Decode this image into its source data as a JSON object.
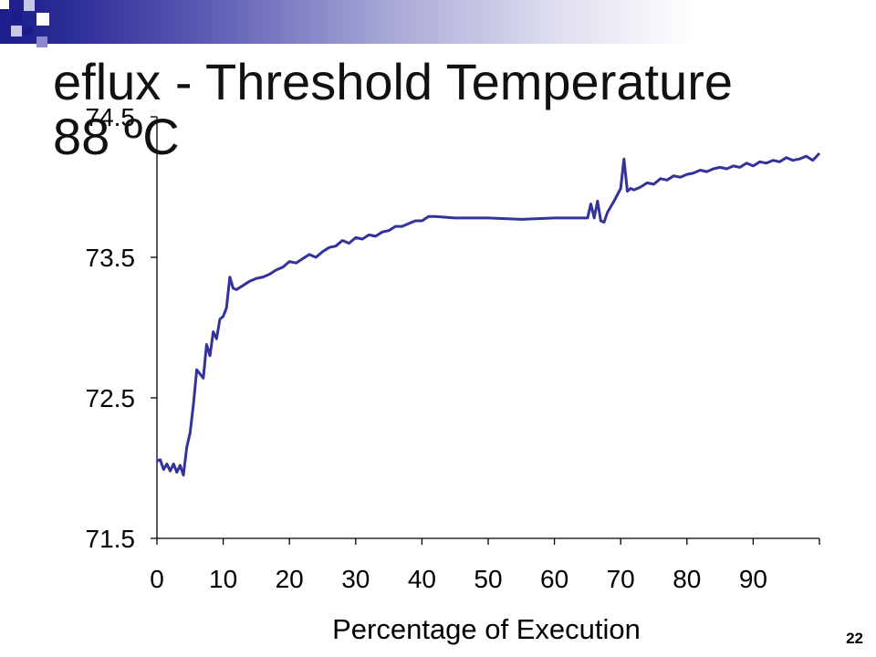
{
  "slide": {
    "title_line1": "eflux - Threshold Temperature",
    "title_line2": "88 ºC",
    "number": "22",
    "colors": {
      "header_dark": "#1c1c8c",
      "line": "#333399",
      "text": "#000000"
    }
  },
  "chart_data": {
    "type": "line",
    "title": "",
    "xlabel": "Percentage of Execution",
    "ylabel": "",
    "xlim": [
      0,
      100
    ],
    "ylim": [
      71.5,
      74.5
    ],
    "x_ticks": [
      0,
      10,
      20,
      30,
      40,
      50,
      60,
      70,
      80,
      90
    ],
    "y_ticks": [
      71.5,
      72.5,
      73.5,
      74.5
    ],
    "x_tick_labels": [
      "0",
      "10",
      "20",
      "30",
      "40",
      "50",
      "60",
      "70",
      "80",
      "90"
    ],
    "y_tick_labels": [
      "71.5",
      "72.5",
      "73.5",
      "74.5"
    ],
    "grid": false,
    "series": [
      {
        "color": "#333399",
        "x": [
          0,
          0.5,
          1,
          1.5,
          2,
          2.5,
          3,
          3.5,
          4,
          4.5,
          5,
          5.5,
          6,
          6.5,
          7,
          7.5,
          8,
          8.5,
          9,
          9.5,
          10,
          10.5,
          11,
          11.5,
          12,
          13,
          14,
          15,
          16,
          17,
          18,
          19,
          20,
          21,
          22,
          23,
          24,
          25,
          26,
          27,
          28,
          29,
          30,
          31,
          32,
          33,
          34,
          35,
          36,
          37,
          38,
          39,
          40,
          41,
          42,
          45,
          50,
          55,
          60,
          65,
          65.5,
          66,
          66.5,
          67,
          67.5,
          68,
          69,
          70,
          70.5,
          71,
          71.5,
          72,
          73,
          74,
          75,
          76,
          77,
          78,
          79,
          80,
          81,
          82,
          83,
          84,
          85,
          86,
          87,
          88,
          89,
          90,
          91,
          92,
          93,
          94,
          95,
          96,
          97,
          98,
          99,
          100
        ],
        "y": [
          72.05,
          72.06,
          71.99,
          72.03,
          71.98,
          72.03,
          71.97,
          72.02,
          71.95,
          72.15,
          72.25,
          72.45,
          72.7,
          72.67,
          72.64,
          72.88,
          72.8,
          72.97,
          72.92,
          73.06,
          73.08,
          73.14,
          73.36,
          73.28,
          73.27,
          73.3,
          73.33,
          73.35,
          73.36,
          73.38,
          73.41,
          73.43,
          73.47,
          73.46,
          73.49,
          73.52,
          73.5,
          73.54,
          73.57,
          73.58,
          73.62,
          73.6,
          73.64,
          73.63,
          73.66,
          73.65,
          73.68,
          73.69,
          73.72,
          73.72,
          73.74,
          73.76,
          73.76,
          73.79,
          73.79,
          73.78,
          73.78,
          73.77,
          73.78,
          73.78,
          73.88,
          73.78,
          73.9,
          73.76,
          73.75,
          73.82,
          73.9,
          73.99,
          74.2,
          73.97,
          73.99,
          73.98,
          74.0,
          74.03,
          74.02,
          74.06,
          74.05,
          74.08,
          74.07,
          74.09,
          74.1,
          74.12,
          74.11,
          74.13,
          74.14,
          74.13,
          74.15,
          74.14,
          74.17,
          74.15,
          74.18,
          74.17,
          74.19,
          74.18,
          74.21,
          74.19,
          74.2,
          74.22,
          74.19,
          74.24
        ]
      }
    ]
  }
}
